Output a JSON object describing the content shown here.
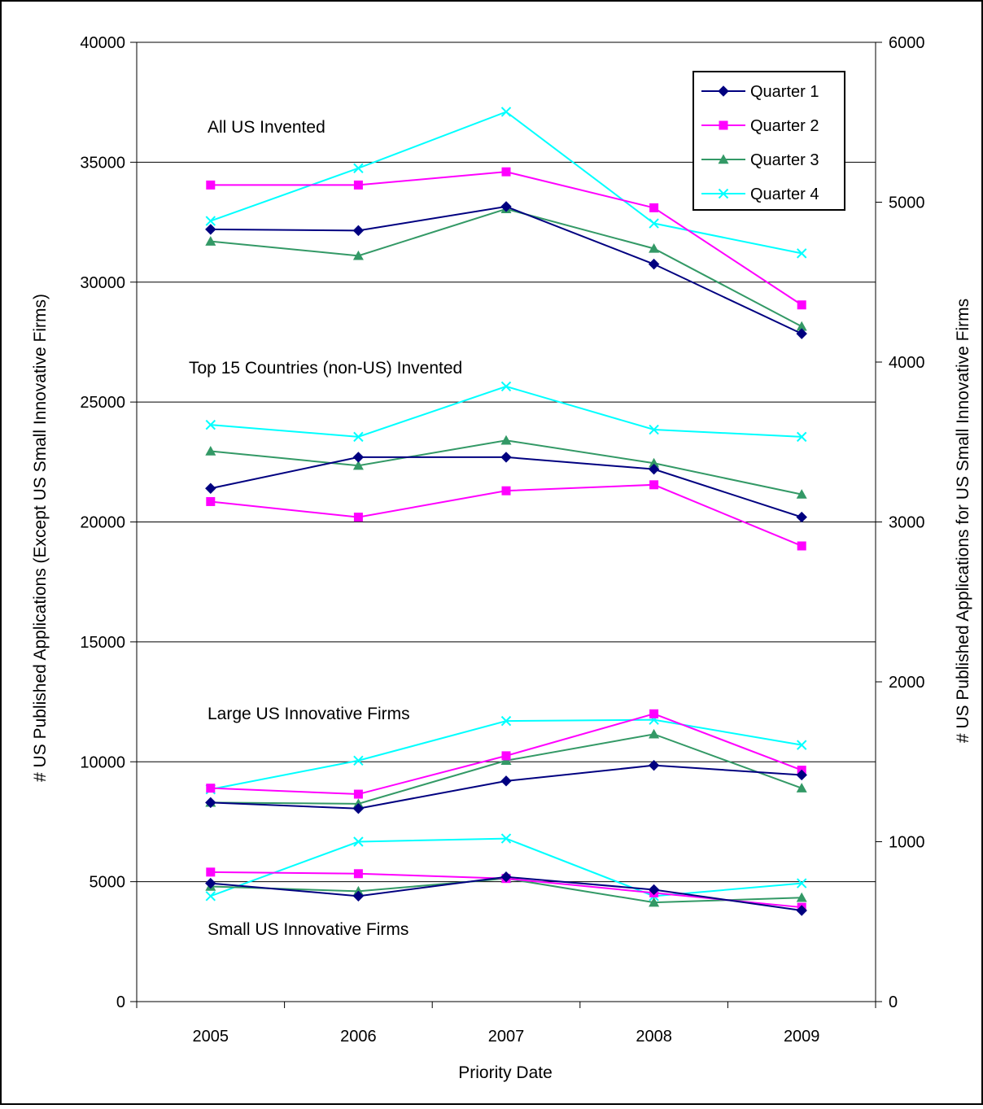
{
  "chart_data": {
    "type": "line",
    "xlabel": "Priority Date",
    "ylabel_left": "# US Published Applications (Except US Small Innovative Firms)",
    "ylabel_right": "# US Published Applications for US Small Innovative Firms",
    "categories": [
      "2005",
      "2006",
      "2007",
      "2008",
      "2009"
    ],
    "ylim_left": [
      0,
      40000
    ],
    "ylim_right": [
      0,
      6000
    ],
    "yticks_left": [
      "0",
      "5000",
      "10000",
      "15000",
      "20000",
      "25000",
      "30000",
      "35000",
      "40000"
    ],
    "yticks_right": [
      "0",
      "1000",
      "2000",
      "3000",
      "4000",
      "5000",
      "6000"
    ],
    "grid": "horizontal",
    "legend_position": "top-right",
    "quarters": [
      {
        "name": "Quarter 1",
        "color": "#000080",
        "marker": "diamond"
      },
      {
        "name": "Quarter 2",
        "color": "#FF00FF",
        "marker": "square"
      },
      {
        "name": "Quarter 3",
        "color": "#339966",
        "marker": "triangle"
      },
      {
        "name": "Quarter 4",
        "color": "#00FFFF",
        "marker": "x"
      }
    ],
    "groups": [
      {
        "label": "All US Invented",
        "axis": "left",
        "series": [
          {
            "name": "Quarter 1",
            "values": [
              32200,
              32150,
              33150,
              30750,
              27850
            ]
          },
          {
            "name": "Quarter 2",
            "values": [
              34050,
              34050,
              34600,
              33100,
              29050
            ]
          },
          {
            "name": "Quarter 3",
            "values": [
              31700,
              31100,
              33050,
              31400,
              28150
            ]
          },
          {
            "name": "Quarter 4",
            "values": [
              32550,
              34750,
              37100,
              32450,
              31200
            ]
          }
        ]
      },
      {
        "label": "Top 15 Countries (non-US) Invented",
        "axis": "left",
        "series": [
          {
            "name": "Quarter 1",
            "values": [
              21400,
              22700,
              22700,
              22200,
              20200
            ]
          },
          {
            "name": "Quarter 2",
            "values": [
              20850,
              20200,
              21300,
              21550,
              19000
            ]
          },
          {
            "name": "Quarter 3",
            "values": [
              22950,
              22350,
              23400,
              22450,
              21150
            ]
          },
          {
            "name": "Quarter 4",
            "values": [
              24050,
              23550,
              25650,
              23850,
              23550
            ]
          }
        ]
      },
      {
        "label": "Large US Innovative Firms",
        "axis": "left",
        "series": [
          {
            "name": "Quarter 1",
            "values": [
              8300,
              8050,
              9200,
              9850,
              9450
            ]
          },
          {
            "name": "Quarter 2",
            "values": [
              8900,
              8650,
              10250,
              12000,
              9650
            ]
          },
          {
            "name": "Quarter 3",
            "values": [
              8300,
              8250,
              10050,
              11150,
              8900
            ]
          },
          {
            "name": "Quarter 4",
            "values": [
              8850,
              10050,
              11700,
              11750,
              10700
            ]
          }
        ]
      },
      {
        "label": "Small US Innovative Firms",
        "axis": "right",
        "series": [
          {
            "name": "Quarter 1",
            "values": [
              740,
              660,
              780,
              700,
              570
            ]
          },
          {
            "name": "Quarter 2",
            "values": [
              810,
              800,
              770,
              680,
              590
            ]
          },
          {
            "name": "Quarter 3",
            "values": [
              720,
              690,
              770,
              620,
              650
            ]
          },
          {
            "name": "Quarter 4",
            "values": [
              660,
              1000,
              1020,
              660,
              740
            ]
          }
        ]
      }
    ]
  }
}
